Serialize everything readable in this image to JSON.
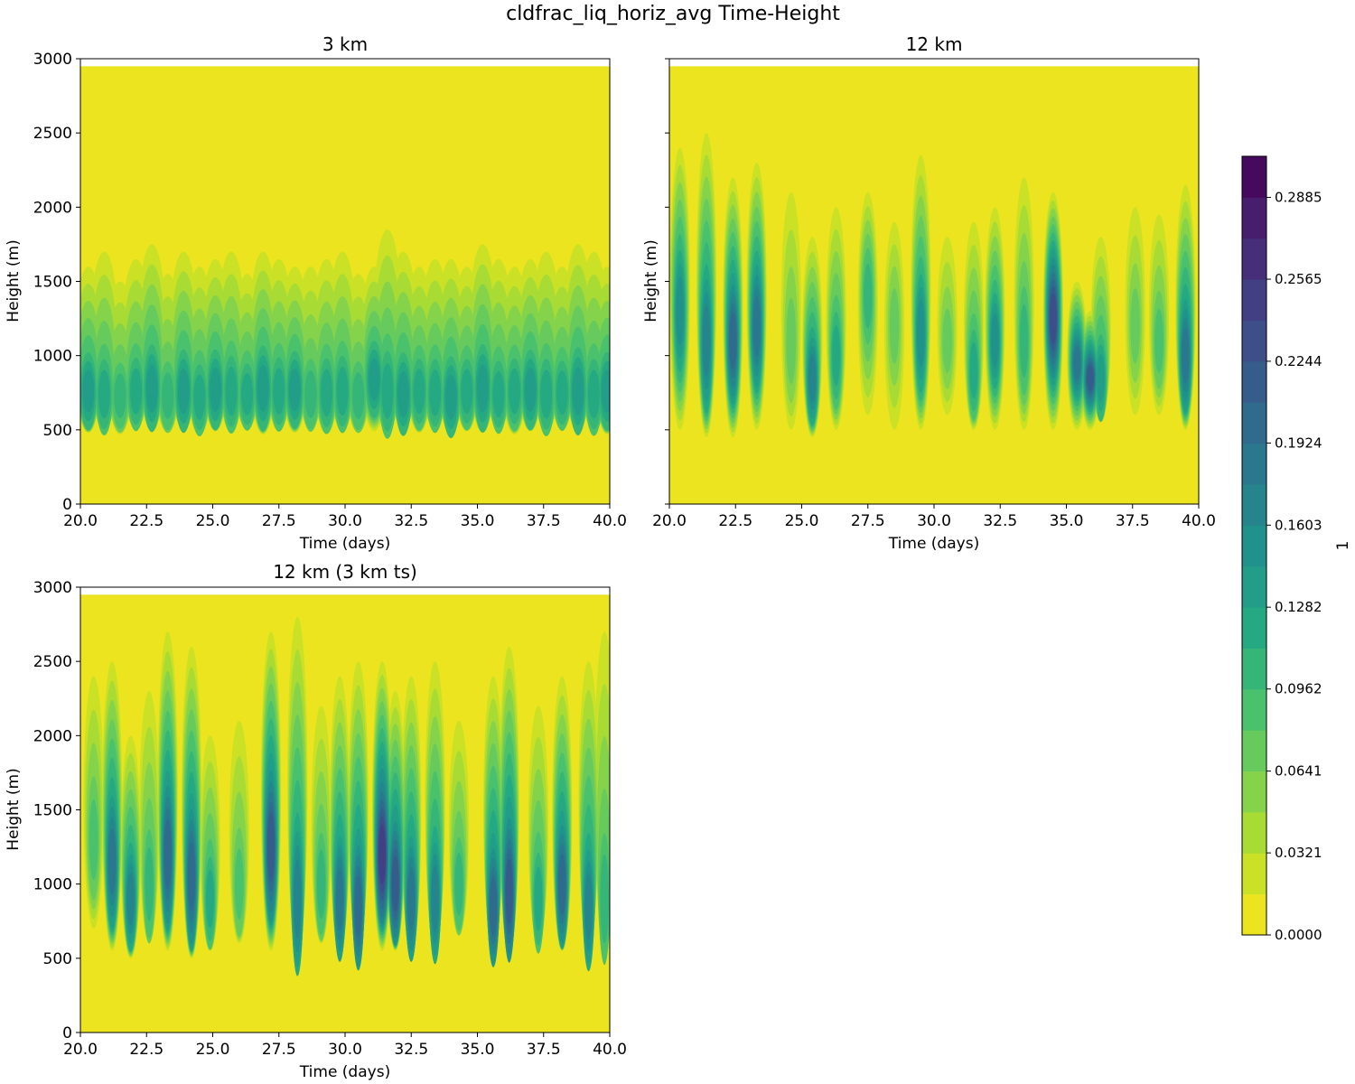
{
  "chart_data": {
    "type": "heatmap",
    "title": "cldfrac_liq_horiz_avg Time-Height",
    "colorbar": {
      "label": "1",
      "range": [
        0,
        0.3046
      ],
      "level_step": 0.01603,
      "ticks": [
        "0.0000",
        "0.0321",
        "0.0641",
        "0.0962",
        "0.1282",
        "0.1603",
        "0.1924",
        "0.2244",
        "0.2565",
        "0.2885"
      ],
      "colormap": "viridis_r"
    },
    "panels": [
      {
        "title": "3 km",
        "xlabel": "Time (days)",
        "ylabel": "Height (m)",
        "show_yticklabels": true,
        "xlim": [
          20,
          40
        ],
        "ylim": [
          0,
          3000
        ],
        "data_top": 2950,
        "xticks": [
          "20.0",
          "22.5",
          "25.0",
          "27.5",
          "30.0",
          "32.5",
          "35.0",
          "37.5",
          "40.0"
        ],
        "yticks": [
          "0",
          "500",
          "1000",
          "1500",
          "2000",
          "2500",
          "3000"
        ],
        "events_columns": [
          "time_days",
          "base_m",
          "top_m",
          "peak_level",
          "core_m"
        ],
        "events": [
          [
            20.3,
            480,
            1600,
            8,
            760
          ],
          [
            20.9,
            500,
            1700,
            7,
            740
          ],
          [
            21.5,
            470,
            1500,
            6,
            730
          ],
          [
            22.1,
            500,
            1650,
            7,
            760
          ],
          [
            22.7,
            490,
            1750,
            8,
            780
          ],
          [
            23.3,
            480,
            1550,
            6,
            730
          ],
          [
            23.9,
            500,
            1700,
            8,
            760
          ],
          [
            24.5,
            470,
            1600,
            7,
            720
          ],
          [
            25.1,
            490,
            1650,
            8,
            770
          ],
          [
            25.7,
            480,
            1700,
            7,
            760
          ],
          [
            26.3,
            500,
            1550,
            7,
            740
          ],
          [
            26.9,
            470,
            1700,
            8,
            780
          ],
          [
            27.5,
            490,
            1650,
            7,
            760
          ],
          [
            28.1,
            480,
            1600,
            8,
            770
          ],
          [
            28.7,
            500,
            1600,
            6,
            740
          ],
          [
            29.3,
            470,
            1650,
            7,
            750
          ],
          [
            29.9,
            490,
            1700,
            7,
            760
          ],
          [
            30.5,
            480,
            1550,
            6,
            730
          ],
          [
            31.1,
            490,
            1600,
            8,
            840
          ],
          [
            31.6,
            470,
            1850,
            7,
            760
          ],
          [
            32.2,
            500,
            1700,
            8,
            740
          ],
          [
            32.8,
            480,
            1600,
            7,
            760
          ],
          [
            33.4,
            490,
            1650,
            7,
            750
          ],
          [
            34.0,
            470,
            1650,
            8,
            720
          ],
          [
            34.6,
            490,
            1600,
            7,
            760
          ],
          [
            35.2,
            480,
            1750,
            8,
            780
          ],
          [
            35.8,
            500,
            1650,
            7,
            740
          ],
          [
            36.4,
            470,
            1600,
            7,
            760
          ],
          [
            37.0,
            490,
            1650,
            8,
            770
          ],
          [
            37.6,
            480,
            1700,
            7,
            740
          ],
          [
            38.2,
            500,
            1600,
            7,
            750
          ],
          [
            38.8,
            480,
            1750,
            8,
            760
          ],
          [
            39.4,
            490,
            1700,
            7,
            740
          ],
          [
            39.9,
            470,
            1600,
            8,
            760
          ]
        ]
      },
      {
        "title": "12 km",
        "xlabel": "Time (days)",
        "ylabel": "Height (m)",
        "show_yticklabels": false,
        "xlim": [
          20,
          40
        ],
        "ylim": [
          0,
          3000
        ],
        "data_top": 2950,
        "xticks": [
          "20.0",
          "22.5",
          "25.0",
          "27.5",
          "30.0",
          "32.5",
          "35.0",
          "37.5",
          "40.0"
        ],
        "yticks": [
          "0",
          "500",
          "1000",
          "1500",
          "2000",
          "2500",
          "3000"
        ],
        "events_columns": [
          "time_days",
          "base_m",
          "top_m",
          "peak_level",
          "core_m"
        ],
        "events": [
          [
            20.4,
            500,
            2400,
            9,
            1300
          ],
          [
            21.4,
            450,
            2500,
            10,
            1100
          ],
          [
            22.4,
            450,
            2200,
            12,
            1100
          ],
          [
            23.3,
            500,
            2300,
            11,
            1200
          ],
          [
            24.6,
            500,
            2100,
            4,
            1100
          ],
          [
            25.4,
            450,
            1800,
            10,
            850
          ],
          [
            26.3,
            500,
            2000,
            7,
            1000
          ],
          [
            27.5,
            600,
            2100,
            6,
            1400
          ],
          [
            28.5,
            500,
            1900,
            4,
            1200
          ],
          [
            29.5,
            500,
            2350,
            9,
            1150
          ],
          [
            30.5,
            600,
            1800,
            4,
            1100
          ],
          [
            31.5,
            500,
            1900,
            7,
            900
          ],
          [
            32.3,
            500,
            2000,
            9,
            1100
          ],
          [
            33.4,
            500,
            2200,
            6,
            1100
          ],
          [
            34.5,
            500,
            2100,
            14,
            1250
          ],
          [
            35.4,
            500,
            1500,
            11,
            950
          ],
          [
            35.9,
            500,
            1300,
            13,
            850
          ],
          [
            36.3,
            550,
            1800,
            8,
            850
          ],
          [
            37.6,
            600,
            2000,
            4,
            1200
          ],
          [
            38.5,
            600,
            1950,
            5,
            1100
          ],
          [
            39.5,
            500,
            2150,
            11,
            1000
          ]
        ]
      },
      {
        "title": "12 km (3 km ts)",
        "xlabel": "Time (days)",
        "ylabel": "Height (m)",
        "show_yticklabels": true,
        "xlim": [
          20,
          40
        ],
        "ylim": [
          0,
          3000
        ],
        "data_top": 2950,
        "xticks": [
          "20.0",
          "22.5",
          "25.0",
          "27.5",
          "30.0",
          "32.5",
          "35.0",
          "37.5",
          "40.0"
        ],
        "yticks": [
          "0",
          "500",
          "1000",
          "1500",
          "2000",
          "2500",
          "3000"
        ],
        "events_columns": [
          "time_days",
          "base_m",
          "top_m",
          "peak_level",
          "core_m"
        ],
        "events": [
          [
            20.5,
            700,
            2400,
            5,
            1300
          ],
          [
            21.2,
            550,
            2500,
            11,
            1150
          ],
          [
            21.9,
            500,
            2000,
            10,
            900
          ],
          [
            22.6,
            600,
            2300,
            6,
            1000
          ],
          [
            23.3,
            550,
            2700,
            12,
            1200
          ],
          [
            24.2,
            500,
            2600,
            12,
            1050
          ],
          [
            24.9,
            550,
            2000,
            7,
            900
          ],
          [
            26.0,
            600,
            2100,
            5,
            1000
          ],
          [
            27.2,
            550,
            2700,
            13,
            1250
          ],
          [
            28.2,
            550,
            2800,
            10,
            900
          ],
          [
            29.1,
            600,
            2200,
            6,
            1000
          ],
          [
            29.8,
            550,
            2400,
            11,
            900
          ],
          [
            30.5,
            600,
            2500,
            12,
            850
          ],
          [
            31.4,
            550,
            2500,
            15,
            1200
          ],
          [
            31.9,
            550,
            2300,
            13,
            1000
          ],
          [
            32.5,
            550,
            2400,
            11,
            900
          ],
          [
            33.4,
            600,
            2500,
            10,
            900
          ],
          [
            34.3,
            650,
            2100,
            6,
            1000
          ],
          [
            35.6,
            600,
            2400,
            12,
            850
          ],
          [
            36.2,
            550,
            2600,
            13,
            950
          ],
          [
            37.3,
            600,
            2200,
            7,
            900
          ],
          [
            38.2,
            550,
            2400,
            12,
            1000
          ],
          [
            39.2,
            600,
            2500,
            10,
            850
          ],
          [
            39.8,
            650,
            2700,
            6,
            900
          ]
        ]
      }
    ]
  }
}
